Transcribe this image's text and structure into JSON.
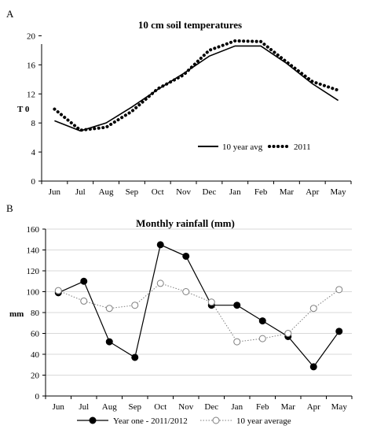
{
  "chart_data": [
    {
      "type": "line",
      "panel": "A",
      "title": "10 cm soil temperatures",
      "xlabel": "",
      "ylabel": "T 0",
      "categories": [
        "Jun",
        "Jul",
        "Aug",
        "Sep",
        "Oct",
        "Nov",
        "Dec",
        "Jan",
        "Feb",
        "Mar",
        "Apr",
        "May"
      ],
      "ylim": [
        0,
        22
      ],
      "yticks": [
        0,
        4,
        8,
        12,
        16,
        20
      ],
      "grid": false,
      "legend_position": "bottom-right",
      "series": [
        {
          "name": "10 year avg",
          "style": "solid",
          "color": "#000000",
          "values": [
            8.3,
            6.9,
            8.0,
            10.2,
            12.6,
            14.8,
            17.2,
            18.6,
            18.6,
            16.2,
            13.4,
            11.1
          ]
        },
        {
          "name": "2011",
          "style": "dotted",
          "color": "#000000",
          "values": [
            9.9,
            7.0,
            7.4,
            9.6,
            12.7,
            14.6,
            18.0,
            19.3,
            19.2,
            16.4,
            13.7,
            12.5
          ]
        }
      ]
    },
    {
      "type": "line",
      "panel": "B",
      "title": "Monthly rainfall (mm)",
      "xlabel": "",
      "ylabel": "mm",
      "categories": [
        "Jun",
        "Jul",
        "Aug",
        "Sep",
        "Oct",
        "Nov",
        "Dec",
        "Jan",
        "Feb",
        "Mar",
        "Apr",
        "May"
      ],
      "ylim": [
        0,
        160
      ],
      "yticks": [
        0,
        20,
        40,
        60,
        80,
        100,
        120,
        140,
        160
      ],
      "grid": true,
      "legend_position": "bottom",
      "series": [
        {
          "name": "Year one - 2011/2012",
          "style": "solid",
          "marker": "filled-circle",
          "color": "#000000",
          "values": [
            99,
            110,
            52,
            37,
            145,
            134,
            87,
            87,
            72,
            57,
            28,
            62
          ]
        },
        {
          "name": "10 year average",
          "style": "dotted",
          "marker": "open-circle",
          "color": "#7f7f7f",
          "values": [
            101,
            91,
            84,
            87,
            108,
            100,
            90,
            52,
            55,
            60,
            84,
            102
          ]
        }
      ]
    }
  ]
}
